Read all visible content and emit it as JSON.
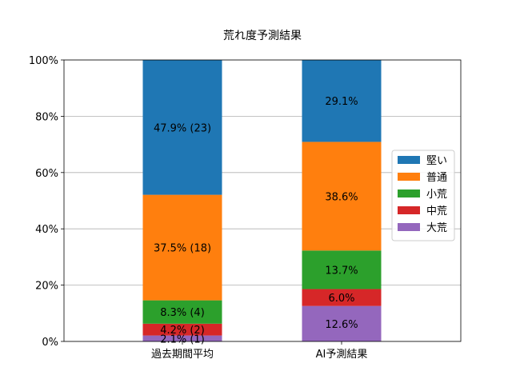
{
  "chart_data": {
    "type": "bar",
    "stacked": true,
    "title": "荒れ度予測結果",
    "xlabel": "",
    "ylabel": "",
    "ylim": [
      0,
      100
    ],
    "y_ticks": [
      "0%",
      "20%",
      "40%",
      "60%",
      "80%",
      "100%"
    ],
    "grid": "y",
    "legend_position": "right",
    "categories": [
      "過去期間平均",
      "AI予測結果"
    ],
    "series": [
      {
        "name": "大荒",
        "color": "#9467bd",
        "values": [
          2.1,
          12.6
        ],
        "labels": [
          "2.1% (1)",
          "12.6%"
        ]
      },
      {
        "name": "中荒",
        "color": "#d62728",
        "values": [
          4.2,
          6.0
        ],
        "labels": [
          "4.2% (2)",
          "6.0%"
        ]
      },
      {
        "name": "小荒",
        "color": "#2ca02c",
        "values": [
          8.3,
          13.7
        ],
        "labels": [
          "8.3% (4)",
          "13.7%"
        ]
      },
      {
        "name": "普通",
        "color": "#ff7f0e",
        "values": [
          37.5,
          38.6
        ],
        "labels": [
          "37.5% (18)",
          "38.6%"
        ]
      },
      {
        "name": "堅い",
        "color": "#1f77b4",
        "values": [
          47.9,
          29.1
        ],
        "labels": [
          "47.9% (23)",
          "29.1%"
        ]
      }
    ],
    "legend_order": [
      "堅い",
      "普通",
      "小荒",
      "中荒",
      "大荒"
    ]
  }
}
